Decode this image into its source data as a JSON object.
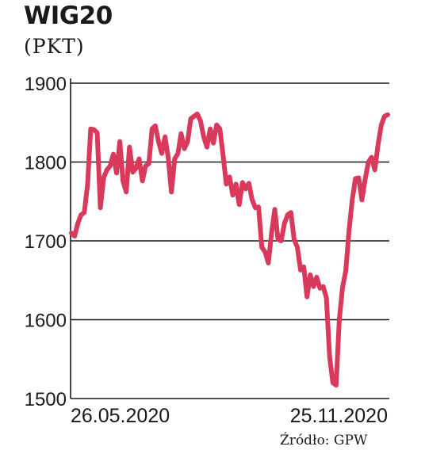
{
  "header": {
    "title": "WIG20",
    "subtitle": "(PKT)"
  },
  "footer": {
    "source": "Źródło: GPW"
  },
  "chart_data": {
    "type": "line",
    "title": "WIG20",
    "subtitle": "(PKT)",
    "xlabel": "",
    "ylabel": "",
    "x_tick_labels": [
      "26.05.2020",
      "25.11.2020"
    ],
    "x_range": [
      "26.05.2020",
      "25.11.2020"
    ],
    "yticks": [
      1500,
      1600,
      1700,
      1800,
      1900
    ],
    "ylim": [
      1500,
      1900
    ],
    "grid": "horizontal",
    "line_color": "#d93a5c",
    "series": [
      {
        "values": [
          1710,
          1706,
          1722,
          1733,
          1736,
          1771,
          1842,
          1841,
          1837,
          1742,
          1780,
          1790,
          1795,
          1810,
          1786,
          1826,
          1776,
          1762,
          1819,
          1787,
          1792,
          1804,
          1776,
          1795,
          1798,
          1842,
          1846,
          1826,
          1811,
          1832,
          1806,
          1762,
          1804,
          1811,
          1836,
          1817,
          1826,
          1855,
          1858,
          1861,
          1852,
          1832,
          1819,
          1842,
          1824,
          1847,
          1842,
          1808,
          1772,
          1781,
          1758,
          1772,
          1746,
          1774,
          1766,
          1773,
          1752,
          1742,
          1743,
          1692,
          1686,
          1672,
          1709,
          1740,
          1702,
          1700,
          1722,
          1733,
          1736,
          1702,
          1692,
          1663,
          1667,
          1629,
          1657,
          1642,
          1654,
          1640,
          1642,
          1628,
          1553,
          1520,
          1517,
          1600,
          1641,
          1662,
          1712,
          1752,
          1779,
          1780,
          1752,
          1778,
          1800,
          1806,
          1790,
          1822,
          1847,
          1858,
          1860
        ]
      }
    ]
  }
}
